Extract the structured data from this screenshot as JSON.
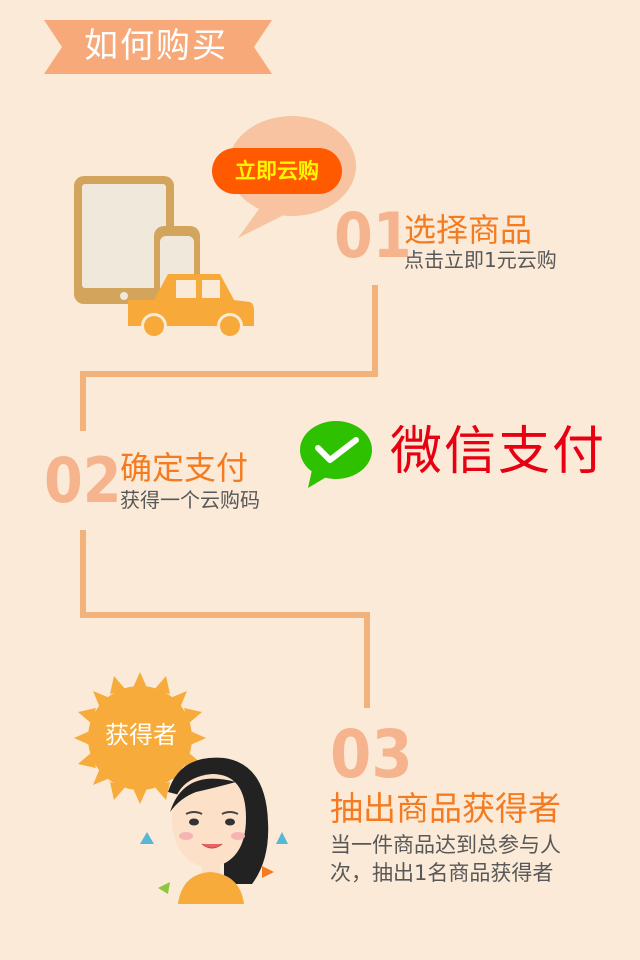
{
  "header": {
    "title": "如何购买"
  },
  "step1": {
    "number": "01",
    "title": "选择商品",
    "description": "点击立即1元云购",
    "bubble_label": "立即云购"
  },
  "step2": {
    "number": "02",
    "title": "确定支付",
    "description": "获得一个云购码",
    "payment_label": "微信支付"
  },
  "step3": {
    "number": "03",
    "title": "抽出商品获得者",
    "description_line1": "当一件商品达到总参与人",
    "description_line2": "次，抽出1名商品获得者",
    "sun_label": "获得者"
  },
  "colors": {
    "background": "#fbead7",
    "accent_orange": "#f47b1f",
    "ribbon": "#f7a97a",
    "line": "#f2b27b",
    "wechat_green": "#2dc100",
    "wechat_red": "#e60012"
  }
}
